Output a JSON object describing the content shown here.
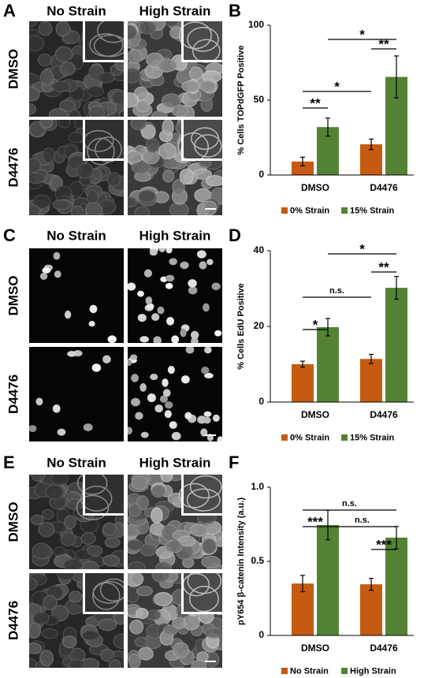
{
  "figure": {
    "image_panels": [
      {
        "panel_label": "A",
        "column_labels": [
          "No Strain",
          "High Strain"
        ],
        "row_labels": [
          "DMSO",
          "D4476"
        ]
      },
      {
        "panel_label": "C",
        "column_labels": [
          "No Strain",
          "High Strain"
        ],
        "row_labels": [
          "DMSO",
          "D4476"
        ]
      },
      {
        "panel_label": "E",
        "column_labels": [
          "No Strain",
          "High Strain"
        ],
        "row_labels": [
          "DMSO",
          "D4476"
        ]
      }
    ]
  },
  "chart_data": [
    {
      "panel_label": "B",
      "type": "bar",
      "y_label": "% Cells TOPdGFP Positive",
      "categories": [
        "DMSO",
        "D4476"
      ],
      "series": [
        {
          "name": "0% Strain",
          "color": "#c55a11",
          "values": [
            9,
            20.5
          ],
          "errors": [
            2.9,
            3.5
          ]
        },
        {
          "name": "15% Strain",
          "color": "#548235",
          "values": [
            32,
            65.5
          ],
          "errors": [
            6,
            14
          ]
        }
      ],
      "ylim": [
        0,
        100
      ],
      "yticks": [
        0,
        50,
        100
      ],
      "annotations": [
        "**",
        "*",
        "*",
        "**"
      ]
    },
    {
      "panel_label": "D",
      "type": "bar",
      "y_label": "% Cells EdU Positive",
      "categories": [
        "DMSO",
        "D4476"
      ],
      "series": [
        {
          "name": "0% Strain",
          "color": "#c55a11",
          "values": [
            10,
            11.4
          ],
          "errors": [
            0.8,
            1.2
          ]
        },
        {
          "name": "15% Strain",
          "color": "#548235",
          "values": [
            19.8,
            30.2
          ],
          "errors": [
            2.3,
            3
          ]
        }
      ],
      "ylim": [
        0,
        40
      ],
      "yticks": [
        0,
        20,
        40
      ],
      "annotations": [
        "*",
        "n.s.",
        "*",
        "**"
      ]
    },
    {
      "panel_label": "F",
      "type": "bar",
      "y_label": "pY654 β-catenin Intensity (a.u.)",
      "categories": [
        "DMSO",
        "D4476"
      ],
      "series": [
        {
          "name": "No Strain",
          "color": "#c55a11",
          "values": [
            0.35,
            0.345
          ],
          "errors": [
            0.055,
            0.04
          ]
        },
        {
          "name": "High Strain",
          "color": "#548235",
          "values": [
            0.745,
            0.66
          ],
          "errors": [
            0.1,
            0.075
          ]
        }
      ],
      "ylim": [
        0,
        1
      ],
      "yticks": [
        0,
        0.5,
        {
          "value": 1,
          "label": "1.0"
        }
      ],
      "annotations": [
        "***",
        "n.s.",
        "n.s.",
        "***"
      ]
    }
  ]
}
